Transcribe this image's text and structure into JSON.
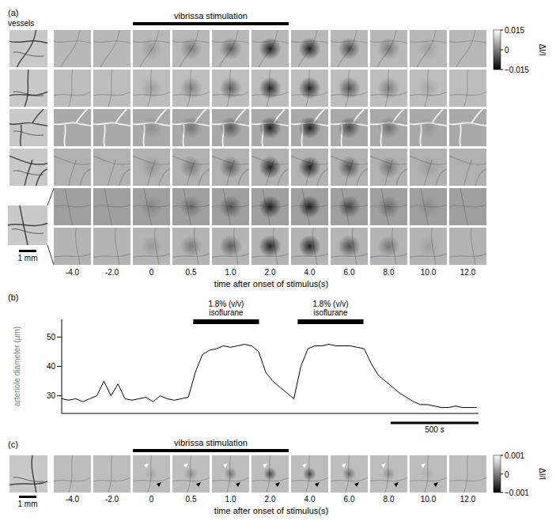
{
  "panels": {
    "a": {
      "label": "(a)",
      "vessels_label": "vessels",
      "stimulus": "vibrissa stimulation",
      "scale_bar": "1 mm",
      "times": [
        {
          "value": -4,
          "label": "-4.0"
        },
        {
          "value": -2,
          "label": "-2.0"
        },
        0,
        0.5,
        {
          "value": 1,
          "label": "1.0"
        },
        {
          "value": 2,
          "label": "2.0"
        },
        {
          "value": 4,
          "label": "4.0"
        },
        {
          "value": 6,
          "label": "6.0"
        },
        {
          "value": 8,
          "label": "8.0"
        },
        {
          "value": 10,
          "label": "10.0"
        },
        {
          "value": 12,
          "label": "12.0"
        }
      ],
      "x_label": "time after onset of stimulus(s)",
      "colorbar": {
        "label": "ΔI/I",
        "range": [
          -0.015,
          0.015
        ],
        "ticks": [
          0.015,
          0,
          {
            "value": -0.015,
            "label": "−0.015"
          }
        ]
      }
    },
    "c": {
      "label": "(c)",
      "stimulus": "vibrissa stimulation",
      "scale_bar": "1 mm",
      "times": [
        {
          "value": -4,
          "label": "-4.0"
        },
        {
          "value": -2,
          "label": "-2.0"
        },
        0,
        0.5,
        {
          "value": 1,
          "label": "1.0"
        },
        {
          "value": 2,
          "label": "2.0"
        },
        {
          "value": 4,
          "label": "4.0"
        },
        {
          "value": 6,
          "label": "6.0"
        },
        {
          "value": 8,
          "label": "8.0"
        },
        {
          "value": 10,
          "label": "10.0"
        },
        {
          "value": 12,
          "label": "12.0"
        }
      ],
      "x_label": "time after onset of stimulus(s)",
      "colorbar": {
        "label": "ΔI/I",
        "range": [
          -0.001,
          0.001
        ],
        "ticks": [
          0.001,
          0,
          {
            "value": -0.001,
            "label": "−0.001"
          }
        ]
      }
    }
  },
  "chart_data": {
    "type": "line",
    "title": "(b)",
    "y_label": "arteriole diameter (μm)",
    "color": "#000000",
    "grid": false,
    "tick_labels": "y",
    "xlim": [
      0,
      2370
    ],
    "ylim": [
      24,
      56
    ],
    "yticks": [
      30,
      40,
      50
    ],
    "x": [
      0,
      40,
      80,
      120,
      160,
      200,
      240,
      280,
      320,
      360,
      400,
      440,
      480,
      520,
      560,
      600,
      640,
      680,
      720,
      760,
      800,
      840,
      880,
      920,
      960,
      1000,
      1040,
      1080,
      1120,
      1160,
      1200,
      1240,
      1280,
      1320,
      1360,
      1400,
      1440,
      1480,
      1520,
      1560,
      1600,
      1640,
      1680,
      1720,
      1760,
      1800,
      1840,
      1880,
      1920,
      1960,
      2000,
      2040,
      2080,
      2120,
      2160,
      2200,
      2240,
      2280,
      2320,
      2360
    ],
    "values": [
      29,
      28.5,
      29,
      28,
      29,
      30,
      35,
      30,
      34,
      29,
      28.5,
      29,
      29.5,
      28,
      30,
      29,
      28.5,
      29,
      29.5,
      38,
      44,
      45.5,
      46,
      47,
      46.5,
      47,
      47.5,
      47,
      45,
      38,
      35,
      33,
      31,
      29,
      40,
      46,
      47,
      47,
      47.5,
      47,
      47,
      47,
      46.5,
      46,
      41,
      37,
      35,
      33,
      31,
      29.5,
      28,
      27,
      27,
      26.5,
      26,
      26,
      26.5,
      26,
      26,
      26
    ],
    "annotations": [
      {
        "text": [
          "1.8% (v/v)",
          "isoflurane"
        ],
        "x": [
          748,
          1122
        ]
      },
      {
        "text": [
          "1.8% (v/v)",
          "isoflurane"
        ],
        "x": [
          1342,
          1716
        ]
      }
    ],
    "scale_bar": {
      "value": 500,
      "label": "500 s"
    }
  }
}
